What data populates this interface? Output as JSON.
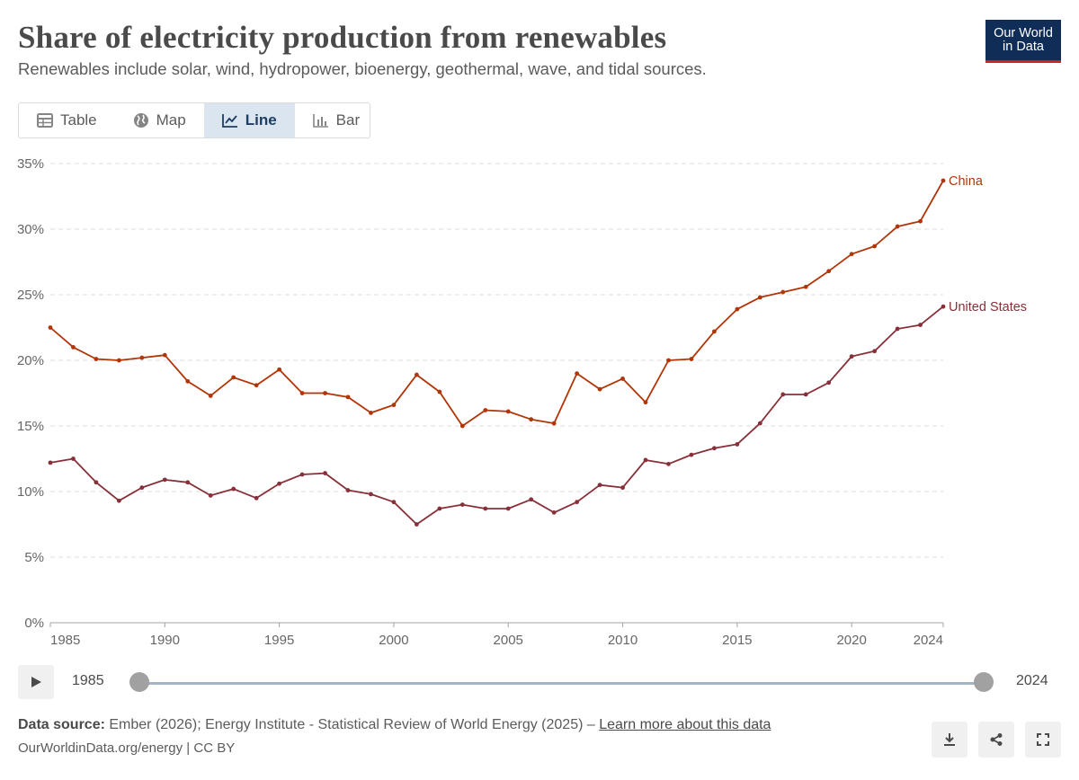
{
  "header": {
    "title": "Share of electricity production from renewables",
    "subtitle": "Renewables include solar, wind, hydropower, bioenergy, geothermal, wave, and tidal sources.",
    "logo_line1": "Our World",
    "logo_line2": "in Data"
  },
  "tabs": [
    {
      "label": "Table",
      "icon": "table-icon"
    },
    {
      "label": "Map",
      "icon": "globe-icon"
    },
    {
      "label": "Line",
      "icon": "line-chart-icon",
      "active": true
    },
    {
      "label": "Bar",
      "icon": "bar-chart-icon"
    }
  ],
  "timeline": {
    "start": "1985",
    "end": "2024"
  },
  "footer": {
    "source_label": "Data source:",
    "source_text": "Ember (2026); Energy Institute - Statistical Review of World Energy (2025) –",
    "learn_more": "Learn more about this data",
    "url": "OurWorldinData.org/energy | CC BY"
  },
  "colors": {
    "china": "#b13507",
    "us": "#883039",
    "grid": "#dddddd",
    "accent": "#0f2d57"
  },
  "chart_data": {
    "type": "line",
    "ylim": [
      0,
      35
    ],
    "yticks": [
      0,
      5,
      10,
      15,
      20,
      25,
      30,
      35
    ],
    "ytick_labels": [
      "0%",
      "5%",
      "10%",
      "15%",
      "20%",
      "25%",
      "30%",
      "35%"
    ],
    "xlim": [
      1985,
      2024
    ],
    "xticks": [
      1985,
      1990,
      1995,
      2000,
      2005,
      2010,
      2015,
      2020,
      2024
    ],
    "xtick_labels": [
      "1985",
      "1990",
      "1995",
      "2000",
      "2005",
      "2010",
      "2015",
      "2020",
      "2024"
    ],
    "grid": true,
    "x": [
      1985,
      1986,
      1987,
      1988,
      1989,
      1990,
      1991,
      1992,
      1993,
      1994,
      1995,
      1996,
      1997,
      1998,
      1999,
      2000,
      2001,
      2002,
      2003,
      2004,
      2005,
      2006,
      2007,
      2008,
      2009,
      2010,
      2011,
      2012,
      2013,
      2014,
      2015,
      2016,
      2017,
      2018,
      2019,
      2020,
      2021,
      2022,
      2023,
      2024
    ],
    "series": [
      {
        "name": "China",
        "color": "#b13507",
        "values": [
          22.5,
          21.0,
          20.1,
          20.0,
          20.2,
          20.4,
          18.4,
          17.3,
          18.7,
          18.1,
          19.3,
          17.5,
          17.5,
          17.2,
          16.0,
          16.6,
          18.9,
          17.6,
          15.0,
          16.2,
          16.1,
          15.5,
          15.2,
          19.0,
          17.8,
          18.6,
          16.8,
          20.0,
          20.1,
          22.2,
          23.9,
          24.8,
          25.2,
          25.6,
          26.8,
          28.1,
          28.7,
          30.2,
          30.6,
          33.7
        ]
      },
      {
        "name": "United States",
        "color": "#883039",
        "values": [
          12.2,
          12.5,
          10.7,
          9.3,
          10.3,
          10.9,
          10.7,
          9.7,
          10.2,
          9.5,
          10.6,
          11.3,
          11.4,
          10.1,
          9.8,
          9.2,
          7.5,
          8.7,
          9.0,
          8.7,
          8.7,
          9.4,
          8.4,
          9.2,
          10.5,
          10.3,
          12.4,
          12.1,
          12.8,
          13.3,
          13.6,
          15.2,
          17.4,
          17.4,
          18.3,
          20.3,
          20.7,
          22.4,
          22.7,
          24.1
        ]
      }
    ]
  }
}
